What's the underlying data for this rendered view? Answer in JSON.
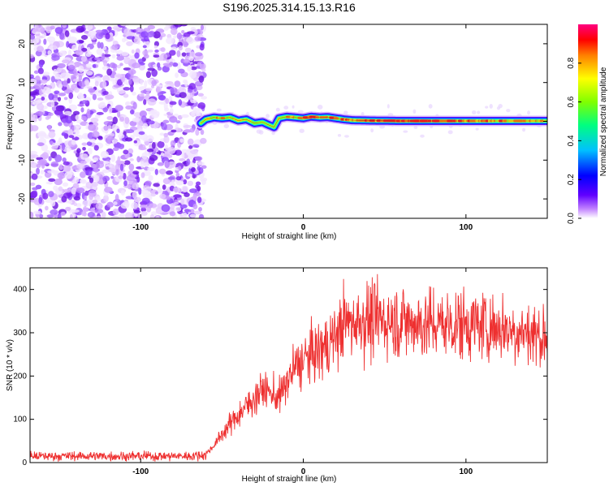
{
  "title": "S196.2025.314.15.13.R16",
  "chart_data": [
    {
      "type": "heatmap",
      "title": "S196.2025.314.15.13.R16",
      "xlabel": "Height of straight line (km)",
      "ylabel": "Frequency (Hz)",
      "xlim": [
        -168,
        150
      ],
      "ylim": [
        -25,
        25
      ],
      "xticks": [
        -100,
        0,
        100
      ],
      "yticks": [
        -20,
        -10,
        0,
        10,
        20
      ],
      "colorbar": {
        "label": "Normalized spectral amplitude",
        "range": [
          0,
          1
        ],
        "ticks": [
          0.0,
          0.2,
          0.4,
          0.6,
          0.8
        ],
        "colors": [
          "#ffffff",
          "#8000ff",
          "#0000ff",
          "#00c0ff",
          "#00ff80",
          "#80ff00",
          "#ffff00",
          "#ff8000",
          "#ff0000",
          "#ff0080"
        ]
      },
      "noise_region_end_km": -63,
      "signal_track": {
        "x": [
          -63,
          -60,
          -55,
          -50,
          -45,
          -40,
          -35,
          -30,
          -25,
          -22,
          -18,
          -15,
          -10,
          -5,
          0,
          5,
          10,
          15,
          20,
          25,
          30,
          40,
          60,
          80,
          100,
          120,
          150
        ],
        "y": [
          -0.5,
          0.5,
          1.0,
          0.8,
          1.0,
          0.2,
          0.5,
          -0.5,
          -0.2,
          -0.8,
          -1.5,
          0.8,
          1.2,
          1.0,
          0.8,
          1.2,
          1.0,
          1.1,
          0.8,
          0.5,
          0.3,
          0.2,
          0.1,
          0.1,
          0.1,
          0.1,
          0.1
        ],
        "amplitude": [
          0.5,
          0.6,
          0.7,
          0.7,
          0.7,
          0.65,
          0.6,
          0.55,
          0.5,
          0.5,
          0.5,
          0.7,
          0.75,
          0.75,
          0.75,
          0.8,
          0.8,
          0.8,
          0.75,
          0.75,
          0.7,
          0.8,
          0.9,
          0.85,
          0.8,
          0.75,
          0.7
        ]
      }
    },
    {
      "type": "line",
      "xlabel": "Height of straight line (km)",
      "ylabel": "SNR (10 * v/v)",
      "xlim": [
        -168,
        150
      ],
      "ylim": [
        0,
        450
      ],
      "xticks": [
        -100,
        0,
        100
      ],
      "yticks": [
        0,
        100,
        200,
        300,
        400
      ],
      "color": "#ee3030",
      "trend": {
        "x": [
          -168,
          -100,
          -70,
          -60,
          -55,
          -45,
          -35,
          -25,
          -15,
          -5,
          5,
          15,
          25,
          35,
          50,
          75,
          100,
          125,
          150
        ],
        "y": [
          15,
          15,
          15,
          18,
          40,
          90,
          130,
          170,
          150,
          220,
          250,
          270,
          320,
          330,
          330,
          320,
          320,
          310,
          290
        ]
      }
    }
  ]
}
